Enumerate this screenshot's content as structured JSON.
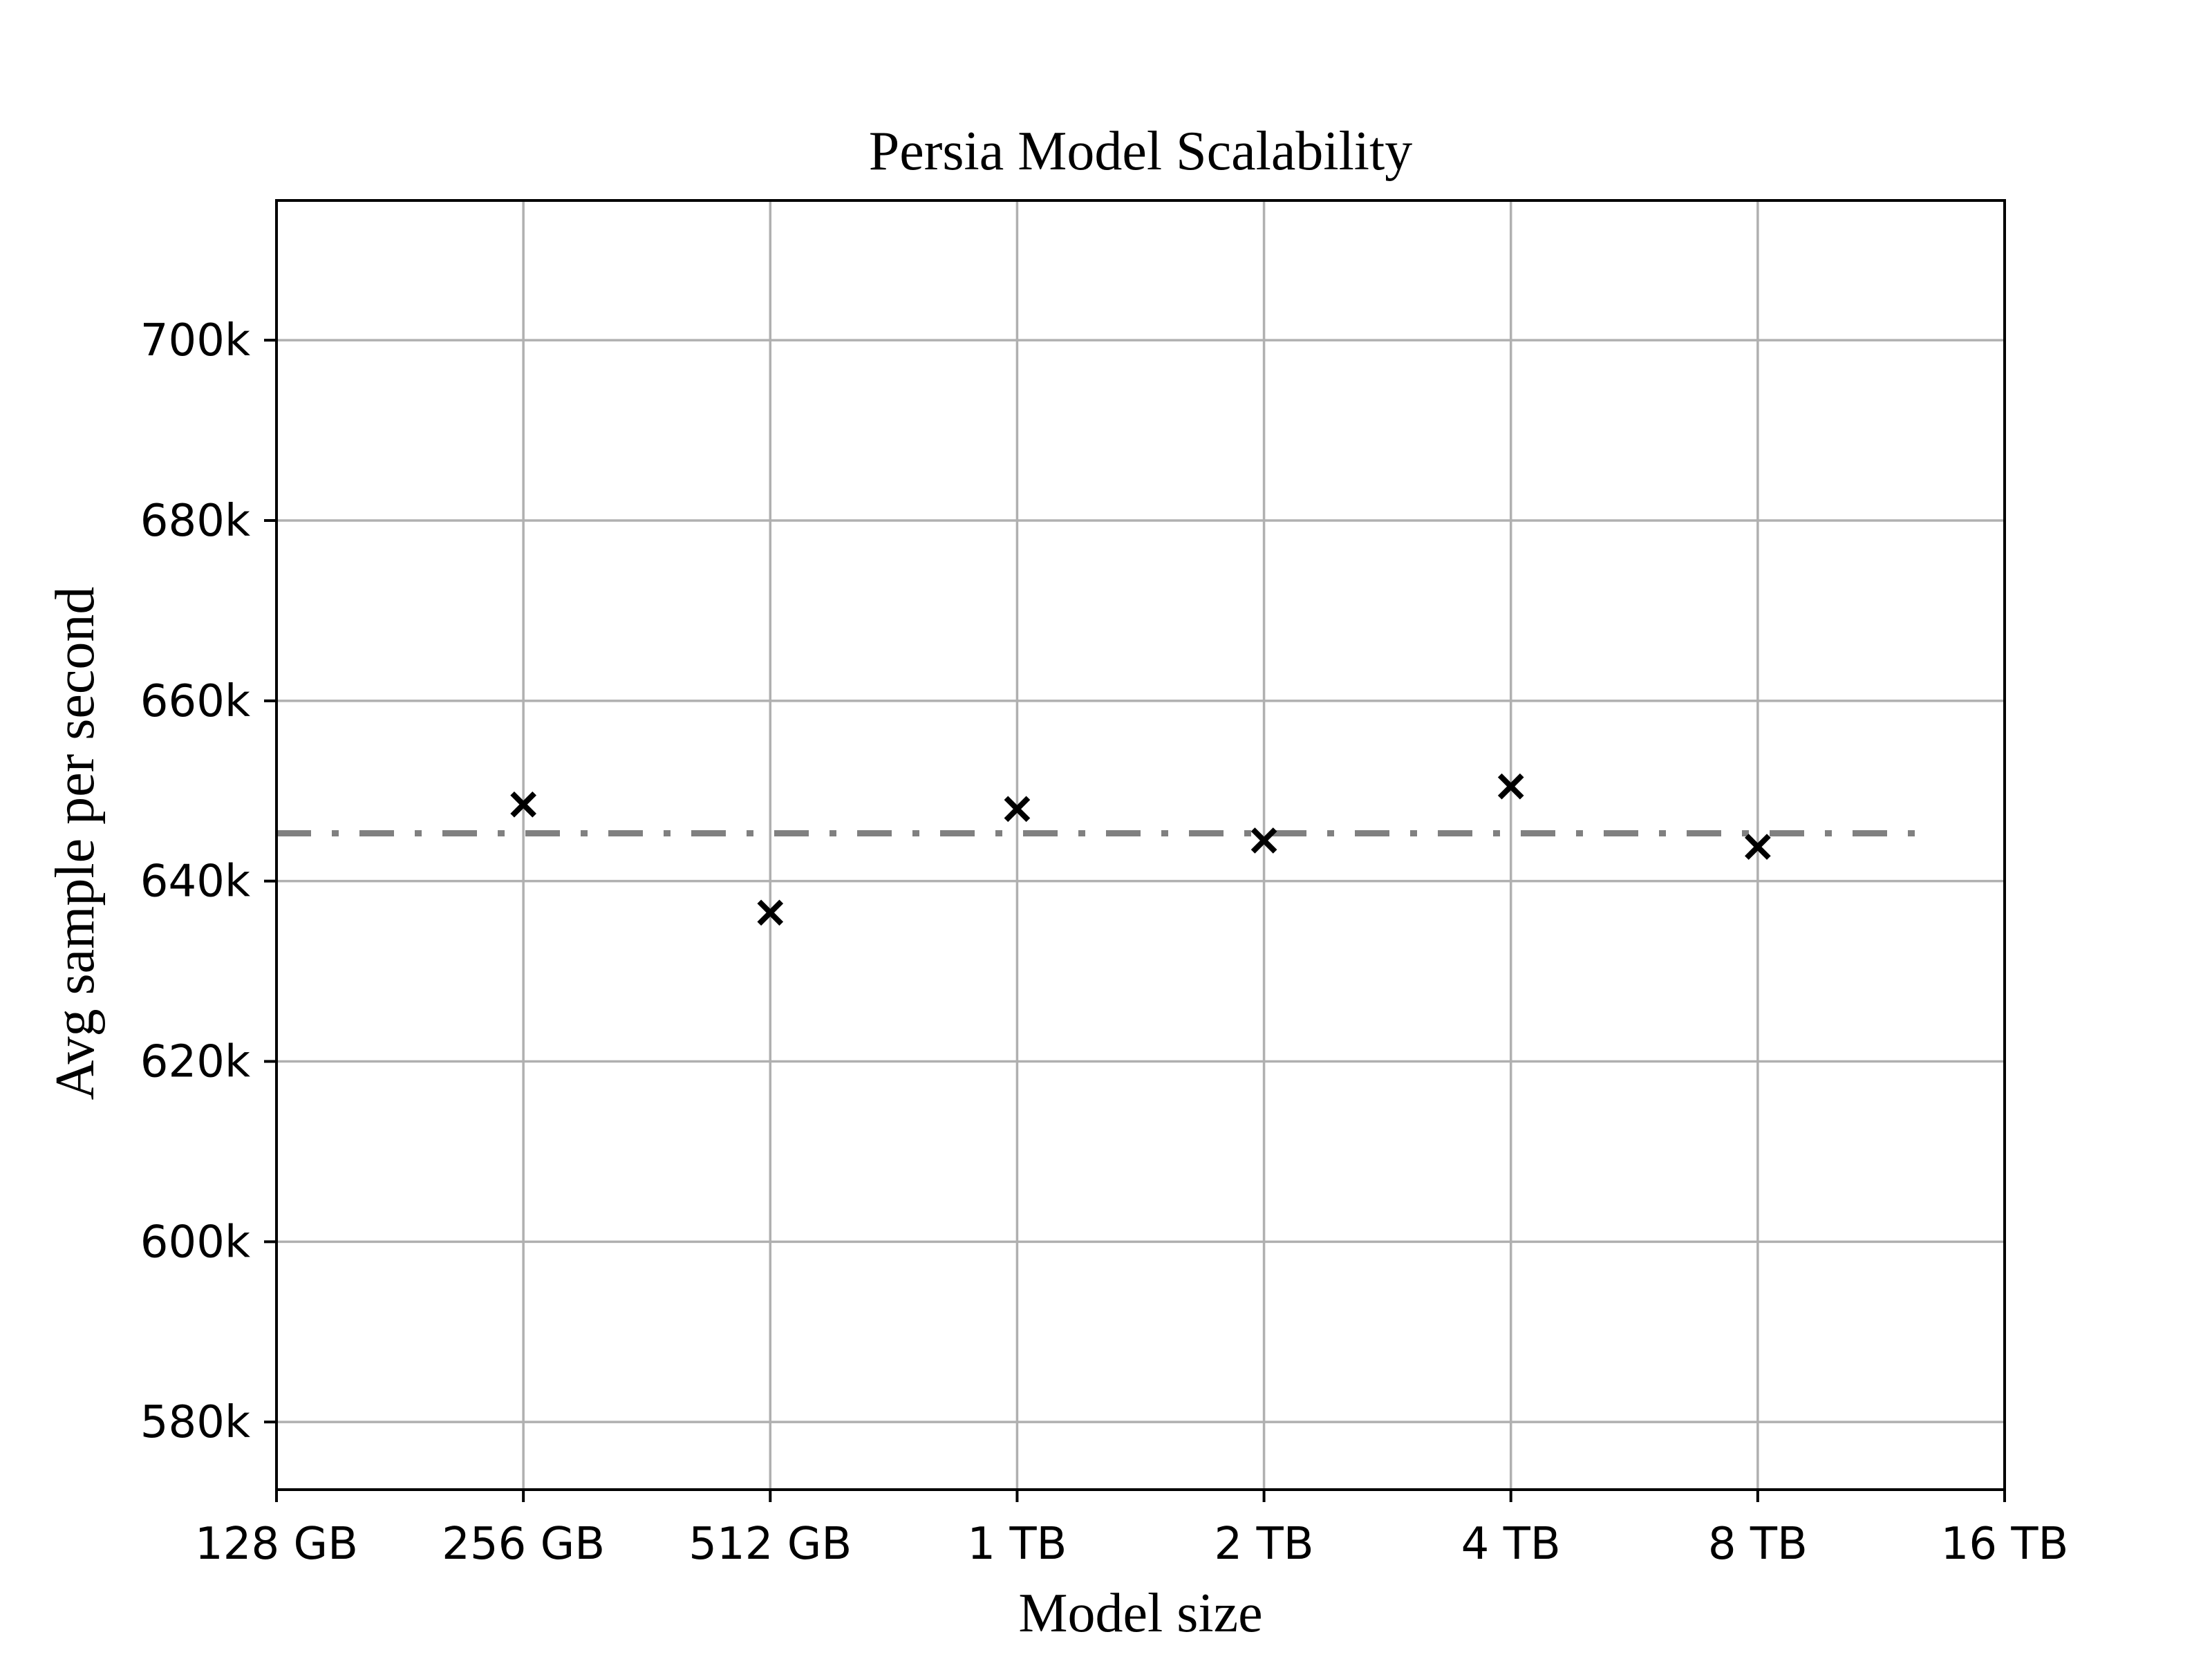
{
  "chart_data": {
    "type": "scatter",
    "title": "Persia Model Scalability",
    "xlabel": "Model size",
    "ylabel": "Avg sample per second",
    "x_scale": "log2",
    "x_ticks": [
      "128 GB",
      "256 GB",
      "512 GB",
      "1 TB",
      "2 TB",
      "4 TB",
      "8 TB",
      "16 TB"
    ],
    "y_ticks": [
      580000,
      600000,
      620000,
      640000,
      660000,
      680000,
      700000
    ],
    "y_tick_labels": [
      "580k",
      "600k",
      "620k",
      "640k",
      "660k",
      "680k",
      "700k"
    ],
    "xlim": [
      "128 GB",
      "16 TB"
    ],
    "ylim": [
      572500,
      715500
    ],
    "grid": true,
    "series": [
      {
        "marker": "x",
        "color": "#000000",
        "x": [
          "256 GB",
          "512 GB",
          "1 TB",
          "2 TB",
          "4 TB",
          "8 TB"
        ],
        "values": [
          648500,
          636500,
          648000,
          644500,
          650500,
          643800
        ]
      }
    ],
    "reference_line": {
      "style": "dash-dot",
      "color": "#808080",
      "value": 645300,
      "x_range": [
        "128 GB",
        "~12 TB"
      ]
    }
  }
}
